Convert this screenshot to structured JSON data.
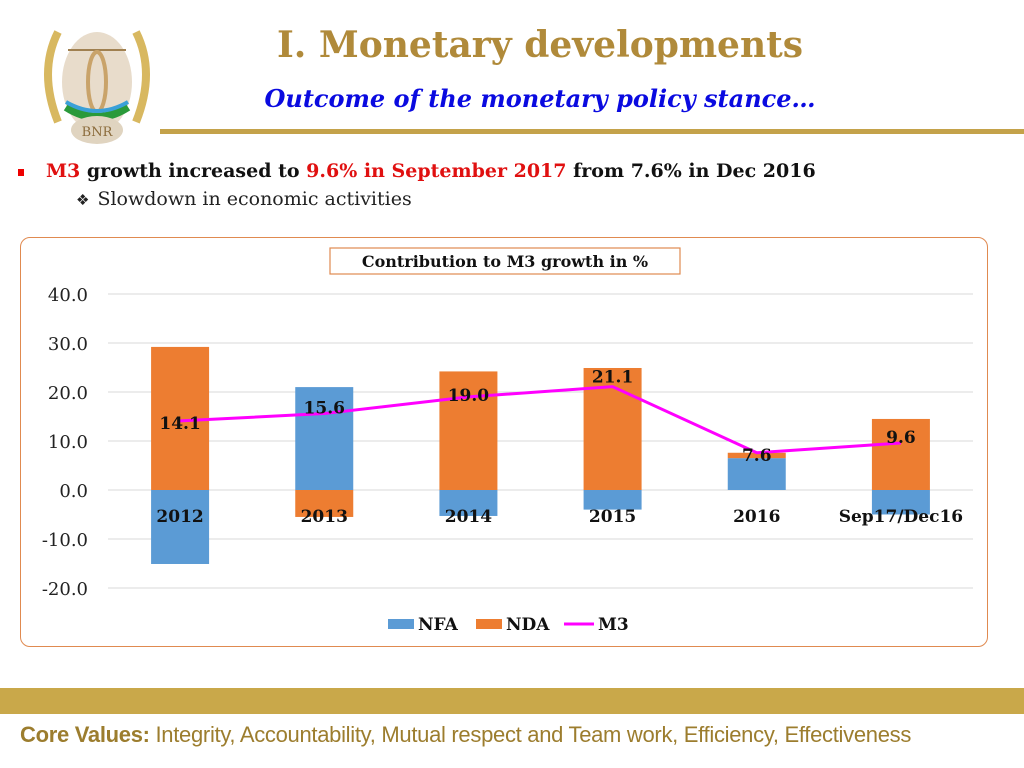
{
  "logo": {
    "text": "BNR"
  },
  "header": {
    "title": "I. Monetary developments",
    "subtitle": "Outcome of the monetary policy stance…"
  },
  "bullets": {
    "main": {
      "part1": "M3",
      "part2": " growth increased to ",
      "part3": "9.6% in September 2017",
      "part4": " from 7.6% in Dec 2016"
    },
    "sub_icon": "diamond-bullet-icon",
    "sub_glyph": "❖",
    "sub": "Slowdown in economic activities"
  },
  "chart_data": {
    "type": "bar",
    "stacked": true,
    "title": "Contribution to M3 growth in %",
    "categories": [
      "2012",
      "2013",
      "2014",
      "2015",
      "2016",
      "Sep17/Dec16"
    ],
    "ylim": [
      -20,
      40
    ],
    "yticks": [
      "40.0",
      "30.0",
      "20.0",
      "10.0",
      "0.0",
      "-10.0",
      "-20.0"
    ],
    "ytick_values": [
      40,
      30,
      20,
      10,
      0,
      -10,
      -20
    ],
    "grid": true,
    "legend": "bottom",
    "series": [
      {
        "name": "NFA",
        "type": "bar",
        "color": "#5b9bd5",
        "values": [
          -15.1,
          21.0,
          -5.3,
          -4.0,
          6.5,
          -5.0
        ]
      },
      {
        "name": "NDA",
        "type": "bar",
        "color": "#ed7d31",
        "values": [
          29.2,
          -5.5,
          24.2,
          24.9,
          1.1,
          14.5
        ]
      },
      {
        "name": "M3",
        "type": "line",
        "color": "#ff00ff",
        "values": [
          14.1,
          15.6,
          19.0,
          21.1,
          7.6,
          9.6
        ],
        "labels": [
          "14.1",
          "15.6",
          "19.0",
          "21.1",
          "7.6",
          "9.6"
        ]
      }
    ]
  },
  "footer": {
    "label": "Core Values:",
    "text": " Integrity, Accountability, Mutual respect and Team work, Efficiency, Effectiveness"
  }
}
